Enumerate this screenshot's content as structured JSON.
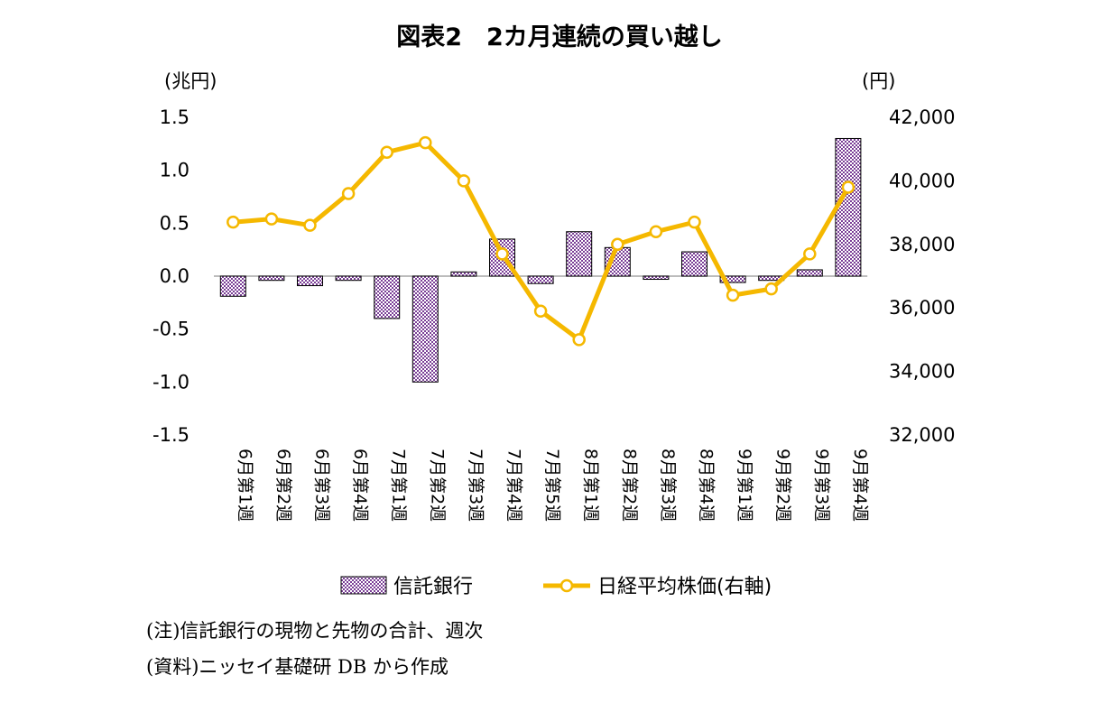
{
  "chart_data": {
    "type": "bar+line",
    "title": "図表2　2カ月連続の買い越し",
    "y_left_unit": "(兆円)",
    "y_right_unit": "(円)",
    "categories": [
      "6月第1週",
      "6月第2週",
      "6月第3週",
      "6月第4週",
      "7月第1週",
      "7月第2週",
      "7月第3週",
      "7月第4週",
      "7月第5週",
      "8月第1週",
      "8月第2週",
      "8月第3週",
      "8月第4週",
      "9月第1週",
      "9月第2週",
      "9月第3週",
      "9月第4週"
    ],
    "y_left": {
      "min": -1.5,
      "max": 1.5,
      "step": 0.5,
      "tick_labels": [
        "1.5",
        "1.0",
        "0.5",
        "0.0",
        "-0.5",
        "-1.0",
        "-1.5"
      ]
    },
    "y_right": {
      "min": 32000,
      "max": 42000,
      "step": 2000,
      "tick_labels": [
        "42,000",
        "40,000",
        "38,000",
        "36,000",
        "34,000",
        "32,000"
      ]
    },
    "series": [
      {
        "name": "信託銀行",
        "axis": "left",
        "kind": "bar",
        "color": "#7a3f96",
        "values": [
          -0.19,
          -0.04,
          -0.09,
          -0.04,
          -0.4,
          -1.0,
          0.04,
          0.35,
          -0.07,
          0.42,
          0.27,
          -0.03,
          0.23,
          -0.06,
          -0.04,
          0.06,
          1.3
        ]
      },
      {
        "name": "日経平均株価(右軸)",
        "axis": "right",
        "kind": "line",
        "color": "#f5b800",
        "values": [
          38700,
          38800,
          38600,
          39600,
          40900,
          41200,
          40000,
          37700,
          35900,
          35000,
          38000,
          38400,
          38700,
          36400,
          36600,
          37700,
          39800
        ]
      }
    ],
    "legend_position": "bottom",
    "grid": false
  },
  "notes": {
    "line1": "(注)信託銀行の現物と先物の合計、週次",
    "line2": "(資料)ニッセイ基礎研 DB から作成"
  }
}
